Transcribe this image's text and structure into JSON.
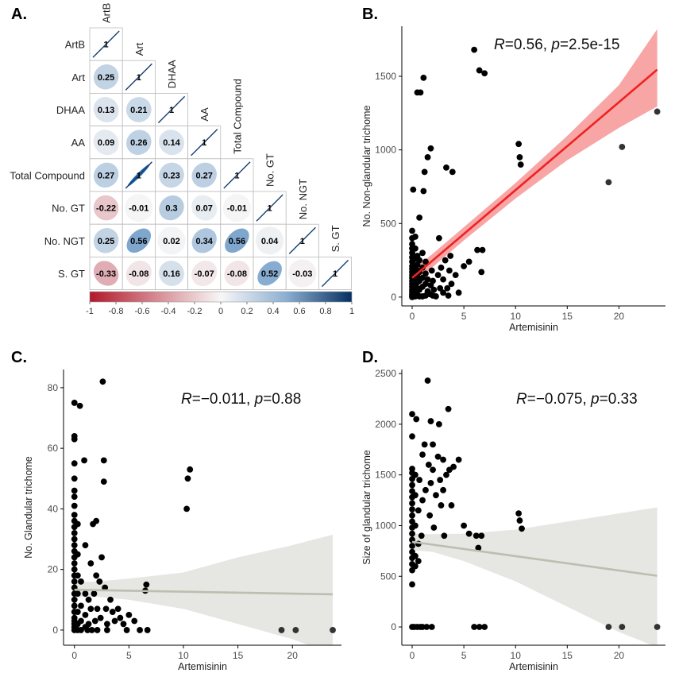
{
  "colors": {
    "neg": "#b2182b",
    "pos": "#2166ac",
    "mid": "#f7f7f7",
    "point": "#000000",
    "fit_b": "#ee2222",
    "band_b": "#f7a5a5",
    "fit_cd": "#bdbdb0",
    "band_cd": "#e6e6e3"
  },
  "chart_data": [
    {
      "panel": "A.",
      "type": "heatmap",
      "title": "",
      "variables": [
        "ArtB",
        "Art",
        "DHAA",
        "AA",
        "Total Compound",
        "No. GT",
        "No. NGT",
        "S. GT"
      ],
      "correlations": [
        [
          1,
          0.25,
          0.13,
          0.09,
          0.27,
          -0.22,
          0.25,
          -0.33
        ],
        [
          0.25,
          1,
          0.21,
          0.26,
          0.98,
          -0.01,
          0.56,
          -0.08
        ],
        [
          0.13,
          0.21,
          1,
          0.14,
          0.23,
          0.3,
          0.02,
          0.16
        ],
        [
          0.09,
          0.26,
          0.14,
          1,
          0.27,
          0.07,
          0.34,
          -0.07
        ],
        [
          0.27,
          0.98,
          0.23,
          0.27,
          1,
          -0.01,
          0.56,
          -0.08
        ],
        [
          -0.22,
          -0.01,
          0.3,
          0.07,
          -0.01,
          1,
          0.04,
          0.52
        ],
        [
          0.25,
          0.56,
          0.02,
          0.34,
          0.56,
          0.04,
          1,
          -0.03
        ],
        [
          -0.33,
          -0.08,
          0.16,
          -0.07,
          -0.08,
          0.52,
          -0.03,
          1
        ]
      ],
      "cell_labels": [
        [],
        [
          "0.25"
        ],
        [
          "0.13",
          "0.21"
        ],
        [
          "0.09",
          "0.26",
          "0.14"
        ],
        [
          "0.27",
          "1",
          "0.23",
          "0.27"
        ],
        [
          "-0.22",
          "-0.01",
          "0.3",
          "0.07",
          "-0.01"
        ],
        [
          "0.25",
          "0.56",
          "0.02",
          "0.34",
          "0.56",
          "0.04"
        ],
        [
          "-0.33",
          "-0.08",
          "0.16",
          "-0.07",
          "-0.08",
          "0.52",
          "-0.03"
        ]
      ],
      "diagonal_label": "1",
      "colorbar": {
        "range": [
          -1,
          1
        ],
        "ticks": [
          "-1",
          "-0.8",
          "-0.6",
          "-0.4",
          "-0.2",
          "0",
          "0.2",
          "0.4",
          "0.6",
          "0.8",
          "1"
        ],
        "tick_values": [
          -1,
          -0.8,
          -0.6,
          -0.4,
          -0.2,
          0,
          0.2,
          0.4,
          0.6,
          0.8,
          1
        ]
      }
    },
    {
      "panel": "B.",
      "type": "scatter",
      "title": "",
      "xlabel": "Artemisinin",
      "ylabel": "No. Non-glandular trichome",
      "xlim": [
        -1,
        24.5
      ],
      "ylim": [
        -60,
        1840
      ],
      "xticks": [
        0,
        5,
        10,
        15,
        20
      ],
      "xtick_labels": [
        "0",
        "5",
        "10",
        "15",
        "20"
      ],
      "yticks": [
        0,
        500,
        1000,
        1500
      ],
      "ytick_labels": [
        "0",
        "500",
        "1000",
        "1500"
      ],
      "annotation": {
        "r_label": "R",
        "r_value": "=0.56, ",
        "p_label": "p",
        "p_value": "=2.5e-15"
      },
      "fit": {
        "x": [
          0,
          23.7
        ],
        "y": [
          130,
          1545
        ]
      },
      "band": {
        "x": [
          0,
          2,
          5,
          10,
          15,
          20,
          23.7
        ],
        "lower": [
          75,
          205,
          385,
          670,
          930,
          1150,
          1295
        ],
        "upper": [
          185,
          295,
          475,
          775,
          1095,
          1440,
          1820
        ]
      },
      "points": [
        [
          0,
          0
        ],
        [
          0,
          10
        ],
        [
          0,
          20
        ],
        [
          0,
          35
        ],
        [
          0,
          50
        ],
        [
          0,
          70
        ],
        [
          0,
          90
        ],
        [
          0,
          110
        ],
        [
          0,
          130
        ],
        [
          0,
          150
        ],
        [
          0,
          170
        ],
        [
          0,
          190
        ],
        [
          0,
          210
        ],
        [
          0,
          240
        ],
        [
          0,
          270
        ],
        [
          0,
          300
        ],
        [
          0,
          330
        ],
        [
          0,
          360
        ],
        [
          0,
          400
        ],
        [
          0,
          450
        ],
        [
          0.1,
          730
        ],
        [
          0.3,
          5
        ],
        [
          0.3,
          40
        ],
        [
          0.3,
          80
        ],
        [
          0.3,
          120
        ],
        [
          0.3,
          160
        ],
        [
          0.3,
          200
        ],
        [
          0.3,
          260
        ],
        [
          0.3,
          330
        ],
        [
          0.3,
          410
        ],
        [
          0.5,
          15
        ],
        [
          0.5,
          60
        ],
        [
          0.5,
          100
        ],
        [
          0.5,
          140
        ],
        [
          0.5,
          180
        ],
        [
          0.5,
          220
        ],
        [
          0.5,
          280
        ],
        [
          0.5,
          1390
        ],
        [
          0.7,
          5
        ],
        [
          0.7,
          50
        ],
        [
          0.7,
          110
        ],
        [
          0.7,
          170
        ],
        [
          0.7,
          250
        ],
        [
          0.7,
          540
        ],
        [
          0.8,
          1390
        ],
        [
          1.0,
          5
        ],
        [
          1.0,
          70
        ],
        [
          1.0,
          130
        ],
        [
          1.0,
          200
        ],
        [
          1.0,
          300
        ],
        [
          1.1,
          1490
        ],
        [
          1.1,
          720
        ],
        [
          1.2,
          850
        ],
        [
          1.3,
          10
        ],
        [
          1.3,
          90
        ],
        [
          1.3,
          160
        ],
        [
          1.3,
          240
        ],
        [
          1.5,
          40
        ],
        [
          1.5,
          120
        ],
        [
          1.5,
          950
        ],
        [
          1.7,
          20
        ],
        [
          1.8,
          80
        ],
        [
          1.8,
          1010
        ],
        [
          1.9,
          180
        ],
        [
          2.0,
          10
        ],
        [
          2.0,
          110
        ],
        [
          2.1,
          50
        ],
        [
          2.3,
          5
        ],
        [
          2.5,
          150
        ],
        [
          2.6,
          400
        ],
        [
          2.7,
          60
        ],
        [
          2.8,
          200
        ],
        [
          3.0,
          30
        ],
        [
          3.0,
          120
        ],
        [
          3.2,
          250
        ],
        [
          3.3,
          880
        ],
        [
          3.4,
          60
        ],
        [
          3.5,
          10
        ],
        [
          3.6,
          180
        ],
        [
          3.7,
          280
        ],
        [
          3.8,
          90
        ],
        [
          3.9,
          850
        ],
        [
          4.2,
          150
        ],
        [
          4.5,
          30
        ],
        [
          5.0,
          210
        ],
        [
          5.5,
          240
        ],
        [
          6.0,
          1680
        ],
        [
          6.3,
          320
        ],
        [
          6.5,
          1540
        ],
        [
          6.7,
          170
        ],
        [
          6.8,
          320
        ],
        [
          7.0,
          1520
        ],
        [
          10.3,
          1040
        ],
        [
          10.4,
          950
        ],
        [
          10.5,
          900
        ],
        [
          19.0,
          780
        ],
        [
          20.3,
          1020
        ],
        [
          23.7,
          1260
        ]
      ]
    },
    {
      "panel": "C.",
      "type": "scatter",
      "title": "",
      "xlabel": "Artemisinin",
      "ylabel": "No. Glandular trichome",
      "xlim": [
        -1,
        24.5
      ],
      "ylim": [
        -5,
        86
      ],
      "xticks": [
        0,
        5,
        10,
        15,
        20
      ],
      "xtick_labels": [
        "0",
        "5",
        "10",
        "15",
        "20"
      ],
      "yticks": [
        0,
        20,
        40,
        60,
        80
      ],
      "ytick_labels": [
        "0",
        "20",
        "40",
        "60",
        "80"
      ],
      "annotation": {
        "r_label": "R",
        "r_value": "=−0.011, ",
        "p_label": "p",
        "p_value": "=0.88"
      },
      "fit": {
        "x": [
          0,
          23.7
        ],
        "y": [
          13.3,
          11.8
        ]
      },
      "band": {
        "x": [
          0,
          2,
          5,
          10,
          15,
          20,
          23.7
        ],
        "lower": [
          10.8,
          11.0,
          10.0,
          7.0,
          2.0,
          -3.0,
          -8.0
        ],
        "upper": [
          15.8,
          16.0,
          17.0,
          19.0,
          24.0,
          28.0,
          31.5
        ]
      },
      "points": [
        [
          0,
          75
        ],
        [
          0,
          64
        ],
        [
          0,
          63
        ],
        [
          0,
          55
        ],
        [
          0,
          50
        ],
        [
          0,
          46
        ],
        [
          0,
          44
        ],
        [
          0,
          41
        ],
        [
          0,
          38
        ],
        [
          0,
          36
        ],
        [
          0,
          34
        ],
        [
          0,
          32
        ],
        [
          0,
          30
        ],
        [
          0,
          28
        ],
        [
          0,
          26
        ],
        [
          0,
          24
        ],
        [
          0,
          22
        ],
        [
          0,
          20
        ],
        [
          0,
          18
        ],
        [
          0,
          16
        ],
        [
          0,
          14
        ],
        [
          0,
          12
        ],
        [
          0,
          10
        ],
        [
          0,
          8
        ],
        [
          0,
          6
        ],
        [
          0,
          4
        ],
        [
          0,
          3
        ],
        [
          0,
          2
        ],
        [
          0,
          1
        ],
        [
          0,
          0
        ],
        [
          0.3,
          35
        ],
        [
          0.3,
          25
        ],
        [
          0.3,
          18
        ],
        [
          0.3,
          12
        ],
        [
          0.3,
          6
        ],
        [
          0.3,
          2
        ],
        [
          0.3,
          0
        ],
        [
          0.5,
          74
        ],
        [
          0.6,
          16
        ],
        [
          0.6,
          8
        ],
        [
          0.6,
          3
        ],
        [
          0.6,
          0
        ],
        [
          0.9,
          56
        ],
        [
          1.0,
          28
        ],
        [
          1.0,
          12
        ],
        [
          1.0,
          5
        ],
        [
          1.0,
          1
        ],
        [
          1.2,
          0
        ],
        [
          1.3,
          10
        ],
        [
          1.3,
          2
        ],
        [
          1.5,
          22
        ],
        [
          1.5,
          7
        ],
        [
          1.6,
          0
        ],
        [
          1.7,
          35
        ],
        [
          1.8,
          12
        ],
        [
          1.9,
          3
        ],
        [
          2.0,
          36
        ],
        [
          2.0,
          18
        ],
        [
          2.1,
          7
        ],
        [
          2.1,
          0
        ],
        [
          2.3,
          16
        ],
        [
          2.4,
          4
        ],
        [
          2.5,
          24
        ],
        [
          2.6,
          82
        ],
        [
          2.7,
          56
        ],
        [
          2.7,
          49
        ],
        [
          2.8,
          14
        ],
        [
          2.9,
          7
        ],
        [
          3.0,
          2
        ],
        [
          3.0,
          0
        ],
        [
          3.3,
          10
        ],
        [
          3.5,
          6
        ],
        [
          3.7,
          3
        ],
        [
          4.0,
          7
        ],
        [
          4.2,
          4
        ],
        [
          4.5,
          2
        ],
        [
          4.8,
          0
        ],
        [
          5.0,
          5
        ],
        [
          5.5,
          3
        ],
        [
          6.0,
          0
        ],
        [
          6.5,
          13
        ],
        [
          6.6,
          15
        ],
        [
          6.7,
          0
        ],
        [
          10.3,
          40
        ],
        [
          10.4,
          50
        ],
        [
          10.6,
          53
        ],
        [
          19.0,
          0
        ],
        [
          20.3,
          0
        ],
        [
          23.7,
          0
        ]
      ]
    },
    {
      "panel": "D.",
      "type": "scatter",
      "title": "",
      "xlabel": "Artemisinin",
      "ylabel": "Size of glandular trichome",
      "xlim": [
        -1,
        24.5
      ],
      "ylim": [
        -180,
        2540
      ],
      "xticks": [
        0,
        5,
        10,
        15,
        20
      ],
      "xtick_labels": [
        "0",
        "5",
        "10",
        "15",
        "20"
      ],
      "yticks": [
        0,
        500,
        1000,
        1500,
        2000,
        2500
      ],
      "ytick_labels": [
        "0",
        "500",
        "1000",
        "1500",
        "2000",
        "2500"
      ],
      "annotation": {
        "r_label": "R",
        "r_value": "=−0.075, ",
        "p_label": "p",
        "p_value": "=0.33"
      },
      "fit": {
        "x": [
          0,
          23.7
        ],
        "y": [
          840,
          505
        ]
      },
      "band": {
        "x": [
          0,
          2,
          5,
          10,
          15,
          20,
          23.7
        ],
        "lower": [
          760,
          740,
          650,
          450,
          200,
          -50,
          -200
        ],
        "upper": [
          920,
          915,
          920,
          960,
          1040,
          1120,
          1180
        ]
      },
      "points": [
        [
          0,
          0
        ],
        [
          0,
          420
        ],
        [
          0,
          560
        ],
        [
          0,
          620
        ],
        [
          0,
          680
        ],
        [
          0,
          740
        ],
        [
          0,
          800
        ],
        [
          0,
          860
        ],
        [
          0,
          920
        ],
        [
          0,
          980
        ],
        [
          0,
          1040
        ],
        [
          0,
          1100
        ],
        [
          0,
          1160
        ],
        [
          0,
          1220
        ],
        [
          0,
          1280
        ],
        [
          0,
          1340
        ],
        [
          0,
          1400
        ],
        [
          0,
          1460
        ],
        [
          0,
          1520
        ],
        [
          0,
          1560
        ],
        [
          0,
          1880
        ],
        [
          0,
          2100
        ],
        [
          0.2,
          0
        ],
        [
          0.3,
          600
        ],
        [
          0.3,
          700
        ],
        [
          0.3,
          1000
        ],
        [
          0.3,
          1300
        ],
        [
          0.3,
          1500
        ],
        [
          0.4,
          2050
        ],
        [
          0.5,
          0
        ],
        [
          0.6,
          650
        ],
        [
          0.6,
          820
        ],
        [
          0.6,
          1150
        ],
        [
          0.7,
          1450
        ],
        [
          0.8,
          0
        ],
        [
          0.9,
          900
        ],
        [
          1.0,
          1700
        ],
        [
          1.0,
          1250
        ],
        [
          1.0,
          0
        ],
        [
          1.2,
          1800
        ],
        [
          1.3,
          1350
        ],
        [
          1.4,
          0
        ],
        [
          1.5,
          2430
        ],
        [
          1.6,
          1600
        ],
        [
          1.7,
          1100
        ],
        [
          1.8,
          2030
        ],
        [
          1.8,
          1420
        ],
        [
          1.9,
          0
        ],
        [
          2.0,
          1800
        ],
        [
          2.0,
          1550
        ],
        [
          2.1,
          980
        ],
        [
          2.3,
          1300
        ],
        [
          2.5,
          1680
        ],
        [
          2.6,
          2000
        ],
        [
          2.7,
          1450
        ],
        [
          2.8,
          1200
        ],
        [
          3.0,
          1650
        ],
        [
          3.0,
          1350
        ],
        [
          3.1,
          900
        ],
        [
          3.3,
          1500
        ],
        [
          3.5,
          2150
        ],
        [
          3.6,
          1550
        ],
        [
          3.8,
          1200
        ],
        [
          4.0,
          1580
        ],
        [
          4.5,
          1650
        ],
        [
          5.0,
          1000
        ],
        [
          5.5,
          920
        ],
        [
          6.0,
          0
        ],
        [
          6.2,
          900
        ],
        [
          6.4,
          780
        ],
        [
          6.5,
          0
        ],
        [
          6.7,
          900
        ],
        [
          7.0,
          0
        ],
        [
          10.3,
          1120
        ],
        [
          10.4,
          1050
        ],
        [
          10.6,
          970
        ],
        [
          19.0,
          0
        ],
        [
          20.3,
          0
        ],
        [
          23.7,
          0
        ]
      ]
    }
  ]
}
